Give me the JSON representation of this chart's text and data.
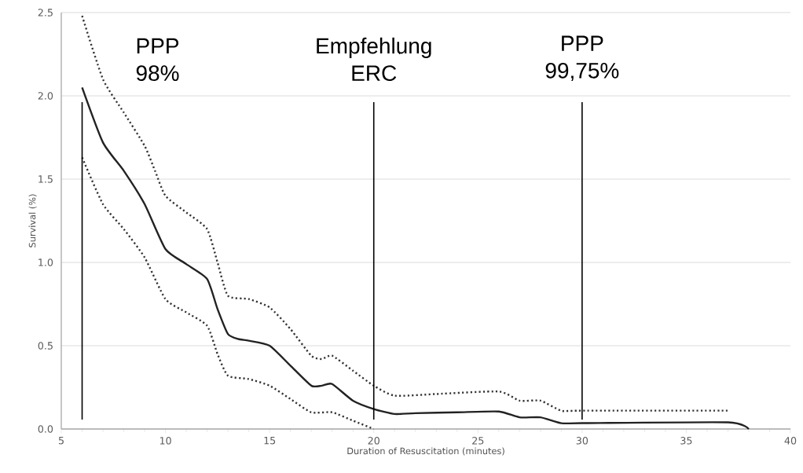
{
  "chart_data": {
    "type": "line",
    "xlabel": "Duration of Resuscitation (minutes)",
    "ylabel": "Survival (%)",
    "xlim": [
      5,
      40
    ],
    "xticks": [
      5,
      10,
      15,
      20,
      25,
      30,
      35,
      40
    ],
    "ylim": [
      0,
      2.5
    ],
    "yticks": [
      {
        "value": 0,
        "label": "0.0"
      },
      {
        "value": 0.5,
        "label": "0.5"
      },
      {
        "value": 1,
        "label": "1.0"
      },
      {
        "value": 1.5,
        "label": "1.5"
      },
      {
        "value": 2,
        "label": "2.0"
      },
      {
        "value": 2.5,
        "label": "2.5"
      }
    ],
    "grid": "y",
    "marker": "none",
    "series": [
      {
        "color": "#222222",
        "line_style": "solid",
        "x": [
          6,
          7,
          8,
          9,
          10,
          11,
          12,
          12.5,
          13,
          13.5,
          14,
          15,
          16,
          17,
          17.5,
          18,
          19,
          20,
          21,
          22,
          24,
          26,
          27,
          28,
          29,
          30,
          37,
          38
        ],
        "values": [
          2.05,
          1.72,
          1.55,
          1.35,
          1.08,
          0.99,
          0.9,
          0.72,
          0.57,
          0.54,
          0.53,
          0.5,
          0.38,
          0.26,
          0.26,
          0.27,
          0.17,
          0.12,
          0.09,
          0.095,
          0.1,
          0.105,
          0.07,
          0.07,
          0.035,
          0.035,
          0.04,
          0.0
        ]
      },
      {
        "color": "#333333",
        "line_style": "dotted",
        "x": [
          6,
          7,
          8,
          9,
          9.5,
          10,
          11,
          12,
          12.5,
          13,
          14,
          15,
          16,
          17,
          17.5,
          18,
          19,
          20,
          21,
          23,
          26,
          27,
          28,
          29,
          30,
          37
        ],
        "values": [
          2.48,
          2.1,
          1.9,
          1.7,
          1.55,
          1.4,
          1.3,
          1.2,
          1.0,
          0.8,
          0.78,
          0.73,
          0.6,
          0.44,
          0.42,
          0.44,
          0.35,
          0.26,
          0.2,
          0.21,
          0.225,
          0.17,
          0.17,
          0.11,
          0.11,
          0.11
        ]
      },
      {
        "color": "#333333",
        "line_style": "dotted",
        "x": [
          6,
          7,
          8,
          9,
          10,
          11,
          12,
          12.5,
          13,
          14,
          15,
          16,
          17,
          18,
          19,
          20
        ],
        "values": [
          1.63,
          1.35,
          1.2,
          1.03,
          0.78,
          0.7,
          0.62,
          0.45,
          0.32,
          0.3,
          0.26,
          0.18,
          0.1,
          0.1,
          0.05,
          0.0
        ]
      }
    ],
    "ref_lines": [
      {
        "axis": "x",
        "value": 6,
        "label": "PPP 98%",
        "color": "#000000"
      },
      {
        "axis": "x",
        "value": 20,
        "label": "Empfehlung ERC",
        "color": "#000000"
      },
      {
        "axis": "x",
        "value": 30,
        "label": "PPP 99,75%",
        "color": "#000000"
      }
    ]
  }
}
